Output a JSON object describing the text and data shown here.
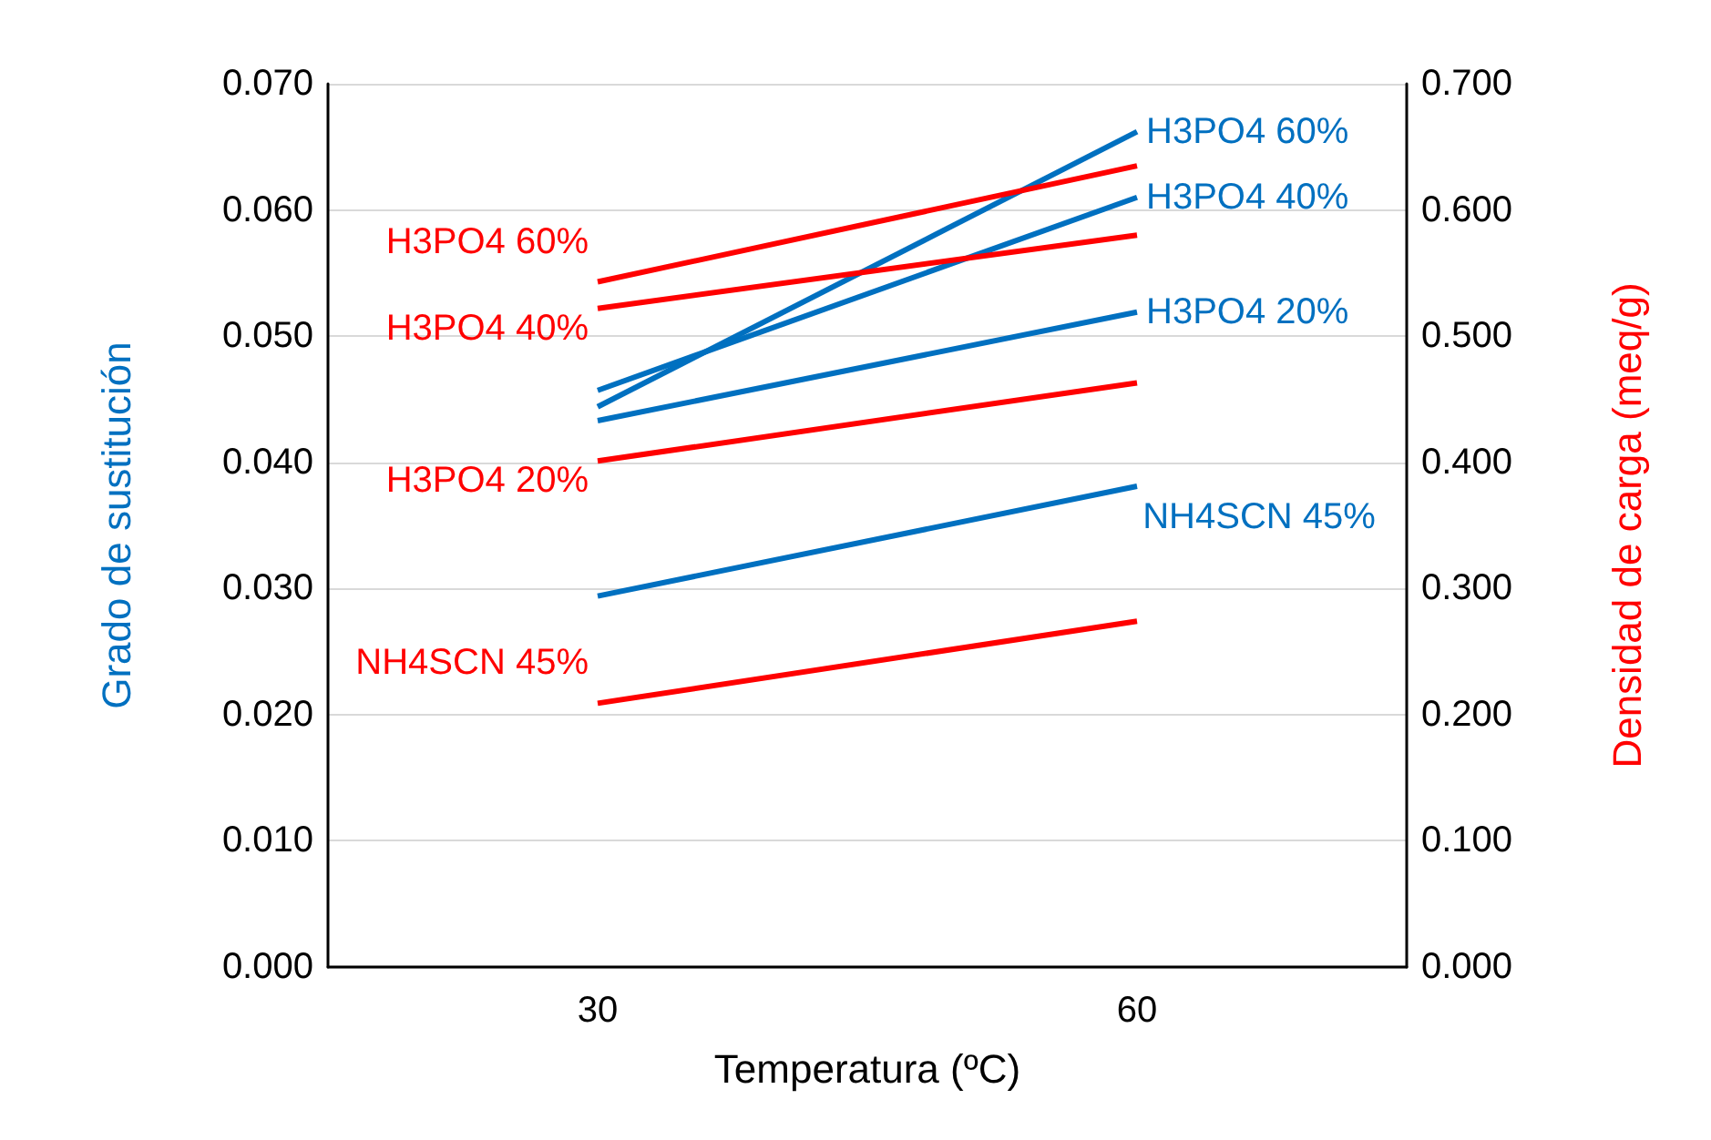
{
  "chart_data": {
    "type": "line",
    "xlabel": "Temperatura (ºC)",
    "ylabel": "Grado de sustitución",
    "y2label": "Densidad de carga (meq/g)",
    "x": [
      30,
      60
    ],
    "xlim": [
      15,
      75
    ],
    "xticks": [
      30,
      60
    ],
    "ylim": [
      0,
      0.07
    ],
    "yticks": [
      {
        "value": 0,
        "label": "0.000"
      },
      {
        "value": 0.01,
        "label": "0.010"
      },
      {
        "value": 0.02,
        "label": "0.020"
      },
      {
        "value": 0.03,
        "label": "0.030"
      },
      {
        "value": 0.04,
        "label": "0.040"
      },
      {
        "value": 0.05,
        "label": "0.050"
      },
      {
        "value": 0.06,
        "label": "0.060"
      },
      {
        "value": 0.07,
        "label": "0.070"
      }
    ],
    "y2lim": [
      0,
      0.7
    ],
    "y2ticks": [
      {
        "value": 0,
        "label": "0.000"
      },
      {
        "value": 0.1,
        "label": "0.100"
      },
      {
        "value": 0.2,
        "label": "0.200"
      },
      {
        "value": 0.3,
        "label": "0.300"
      },
      {
        "value": 0.4,
        "label": "0.400"
      },
      {
        "value": 0.5,
        "label": "0.500"
      },
      {
        "value": 0.6,
        "label": "0.600"
      },
      {
        "value": 0.7,
        "label": "0.700"
      }
    ],
    "series": [
      {
        "name": "H3PO4 60%",
        "color": "#0070c0",
        "values": [
          0.0444,
          0.0662
        ]
      },
      {
        "name": "H3PO4 40%",
        "color": "#0070c0",
        "values": [
          0.0457,
          0.061
        ]
      },
      {
        "name": "H3PO4 20%",
        "color": "#0070c0",
        "values": [
          0.0433,
          0.0519
        ]
      },
      {
        "name": "NH4SCN 45%",
        "color": "#0070c0",
        "values": [
          0.0294,
          0.0381
        ]
      },
      {
        "name": "H3PO4 60%",
        "color": "#ff0000",
        "axis": "y2",
        "values": [
          0.543,
          0.635
        ]
      },
      {
        "name": "H3PO4 40%",
        "color": "#ff0000",
        "axis": "y2",
        "values": [
          0.522,
          0.58
        ]
      },
      {
        "name": "H3PO4 20%",
        "color": "#ff0000",
        "axis": "y2",
        "values": [
          0.401,
          0.463
        ]
      },
      {
        "name": "NH4SCN 45%",
        "color": "#ff0000",
        "axis": "y2",
        "values": [
          0.209,
          0.274
        ]
      }
    ],
    "grid": "y",
    "marker": "none",
    "line_style": "solid"
  }
}
